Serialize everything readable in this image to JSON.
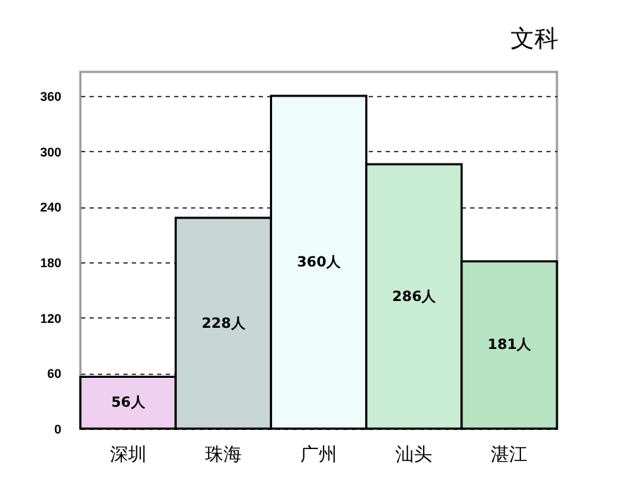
{
  "chart_data": {
    "type": "bar",
    "title": "文科",
    "categories": [
      "深圳",
      "珠海",
      "广州",
      "汕头",
      "湛江"
    ],
    "values": [
      56,
      228,
      360,
      286,
      181
    ],
    "value_labels": [
      "56人",
      "228人",
      "360人",
      "286人",
      "181人"
    ],
    "colors": [
      "#f0d0f0",
      "#c8d6d6",
      "#eefcfc",
      "#c8ecd4",
      "#b8e4c4"
    ],
    "ylim": [
      0,
      386
    ],
    "yticks": [
      0,
      60,
      120,
      180,
      240,
      300,
      360
    ],
    "grid": "y",
    "legend": false
  }
}
